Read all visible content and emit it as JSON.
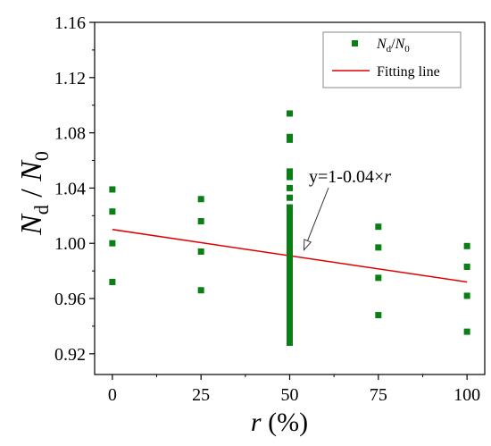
{
  "chart_data": {
    "type": "scatter",
    "xlabel": {
      "main": "r",
      "unit": " (%)"
    },
    "ylabel": {
      "n": "N",
      "n_sub": "d",
      "sep": " / ",
      "d": "N",
      "d_sub": "0"
    },
    "xlim": [
      -5,
      105
    ],
    "ylim": [
      0.905,
      1.16
    ],
    "xticks": [
      0,
      25,
      50,
      75,
      100
    ],
    "yticks": [
      0.92,
      0.96,
      1.0,
      1.04,
      1.08,
      1.12,
      1.16
    ],
    "ytick_labels": [
      "0.92",
      "0.96",
      "1.00",
      "1.04",
      "1.08",
      "1.12",
      "1.16"
    ],
    "series": [
      {
        "name": {
          "n": "N",
          "n_sub": "d",
          "sep": "/",
          "d": "N",
          "d_sub": "0"
        },
        "kind": "scatter",
        "marker": "square",
        "color": "#0a7f14",
        "points": [
          [
            0,
            1.039
          ],
          [
            0,
            1.023
          ],
          [
            0,
            1.0
          ],
          [
            0,
            0.972
          ],
          [
            25,
            1.032
          ],
          [
            25,
            1.016
          ],
          [
            25,
            0.994
          ],
          [
            25,
            0.966
          ],
          [
            50,
            1.094
          ],
          [
            50,
            1.077
          ],
          [
            50,
            1.075
          ],
          [
            50,
            1.052
          ],
          [
            50,
            1.048
          ],
          [
            50,
            1.04
          ],
          [
            50,
            1.033
          ],
          [
            50,
            1.026
          ],
          [
            50,
            1.022
          ],
          [
            50,
            1.019
          ],
          [
            50,
            1.016
          ],
          [
            50,
            1.012
          ],
          [
            50,
            1.008
          ],
          [
            50,
            1.004
          ],
          [
            50,
            1.001
          ],
          [
            50,
            0.998
          ],
          [
            50,
            0.995
          ],
          [
            50,
            0.992
          ],
          [
            50,
            0.989
          ],
          [
            50,
            0.986
          ],
          [
            50,
            0.983
          ],
          [
            50,
            0.98
          ],
          [
            50,
            0.977
          ],
          [
            50,
            0.974
          ],
          [
            50,
            0.971
          ],
          [
            50,
            0.968
          ],
          [
            50,
            0.965
          ],
          [
            50,
            0.962
          ],
          [
            50,
            0.959
          ],
          [
            50,
            0.956
          ],
          [
            50,
            0.953
          ],
          [
            50,
            0.95
          ],
          [
            50,
            0.947
          ],
          [
            50,
            0.944
          ],
          [
            50,
            0.941
          ],
          [
            50,
            0.938
          ],
          [
            50,
            0.935
          ],
          [
            50,
            0.931
          ],
          [
            50,
            0.928
          ],
          [
            75,
            1.012
          ],
          [
            75,
            0.997
          ],
          [
            75,
            0.975
          ],
          [
            75,
            0.948
          ],
          [
            100,
            0.998
          ],
          [
            100,
            0.983
          ],
          [
            100,
            0.962
          ],
          [
            100,
            0.936
          ]
        ]
      },
      {
        "name": "Fitting line",
        "kind": "line",
        "color": "#e00000",
        "x": [
          0,
          100
        ],
        "y": [
          1.01,
          0.972
        ]
      }
    ],
    "legend": "top-right",
    "annotation": {
      "prefix": "y=1-0.04×",
      "var": "r",
      "target": [
        50,
        0.99
      ]
    },
    "grid": false
  }
}
